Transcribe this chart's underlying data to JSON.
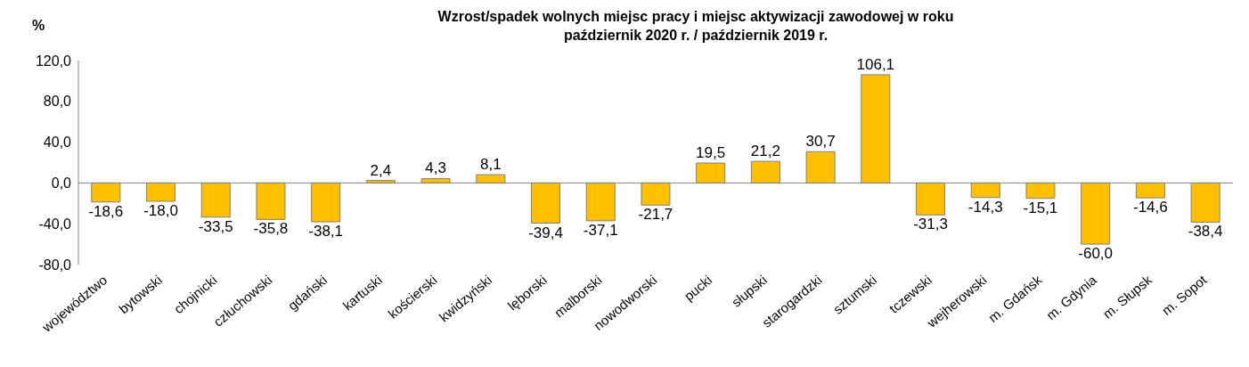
{
  "chart_data": {
    "type": "bar",
    "title": "Wzrost/spadek wolnych miejsc pracy i miejsc aktywizacji zawodowej w roku\npaździernik 2020 r. / październik 2019 r.",
    "ylabel": "%",
    "categories": [
      "województwo",
      "bytowski",
      "chojnicki",
      "człuchowski",
      "gdański",
      "kartuski",
      "kościerski",
      "kwidzyński",
      "lęborski",
      "malborski",
      "nowodworski",
      "pucki",
      "słupski",
      "starogardzki",
      "sztumski",
      "tczewski",
      "wejherowski",
      "m. Gdańsk",
      "m. Gdynia",
      "m. Słupsk",
      "m. Sopot"
    ],
    "values": [
      -18.6,
      -18.0,
      -33.5,
      -35.8,
      -38.1,
      2.4,
      4.3,
      8.1,
      -39.4,
      -37.1,
      -21.7,
      19.5,
      21.2,
      30.7,
      106.1,
      -31.3,
      -14.3,
      -15.1,
      -60.0,
      -14.6,
      -38.4
    ],
    "value_labels": [
      "-18,6",
      "-18,0",
      "-33,5",
      "-35,8",
      "-38,1",
      "2,4",
      "4,3",
      "8,1",
      "-39,4",
      "-37,1",
      "-21,7",
      "19,5",
      "21,2",
      "30,7",
      "106,1",
      "-31,3",
      "-14,3",
      "-15,1",
      "-60,0",
      "-14,6",
      "-38,4"
    ],
    "color": "#ffc000",
    "ylim": [
      -80,
      120
    ],
    "yticks": [
      {
        "value": -80,
        "label": "-80,0"
      },
      {
        "value": -40,
        "label": "-40,0"
      },
      {
        "value": 0,
        "label": "0,0"
      },
      {
        "value": 40,
        "label": "40,0"
      },
      {
        "value": 80,
        "label": "80,0"
      },
      {
        "value": 120,
        "label": "120,0"
      }
    ],
    "ref_lines": [
      {
        "axis": "y",
        "value": 0,
        "color": "#868686"
      }
    ],
    "grid": false,
    "legend": false
  }
}
